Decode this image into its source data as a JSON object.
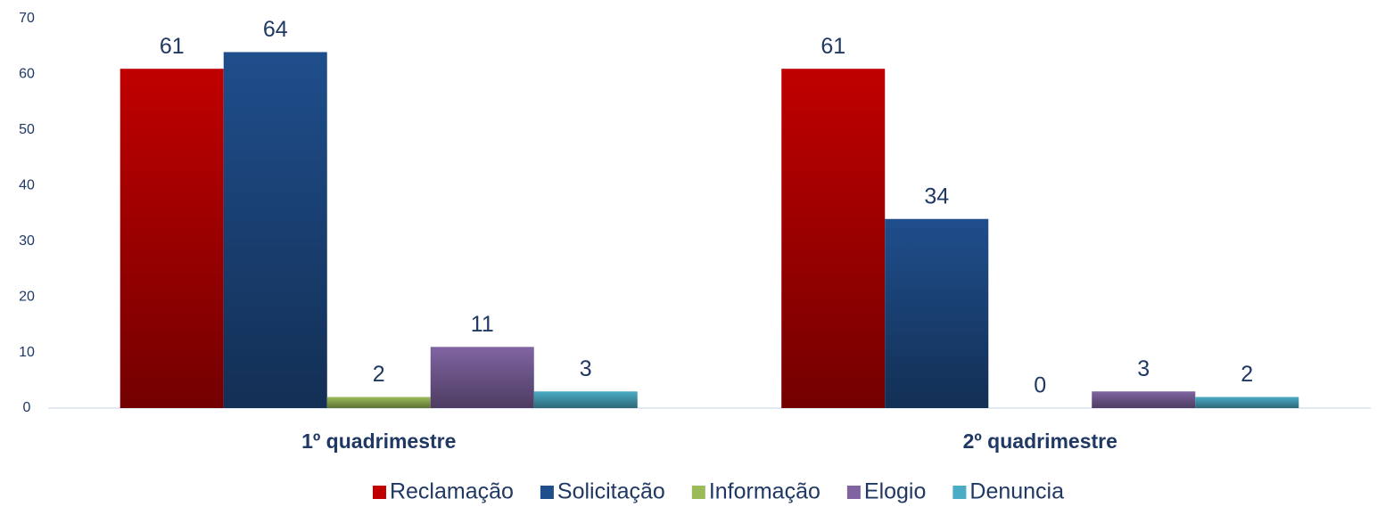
{
  "chart_data": {
    "type": "bar",
    "categories": [
      "1º quadrimestre",
      "2º quadrimestre"
    ],
    "series": [
      {
        "name": "Reclamação",
        "color": "#c00000",
        "values": [
          61,
          61
        ]
      },
      {
        "name": "Solicitação",
        "color": "#1f4e8c",
        "values": [
          64,
          34
        ]
      },
      {
        "name": "Informação",
        "color": "#9bbb59",
        "values": [
          2,
          0
        ]
      },
      {
        "name": "Elogio",
        "color": "#8064a2",
        "values": [
          11,
          3
        ]
      },
      {
        "name": "Denuncia",
        "color": "#4bacc6",
        "values": [
          3,
          2
        ]
      }
    ],
    "ylim": [
      0,
      70
    ],
    "yticks": [
      0,
      10,
      20,
      30,
      40,
      50,
      60,
      70
    ],
    "grid": false,
    "legend": "bottom"
  }
}
